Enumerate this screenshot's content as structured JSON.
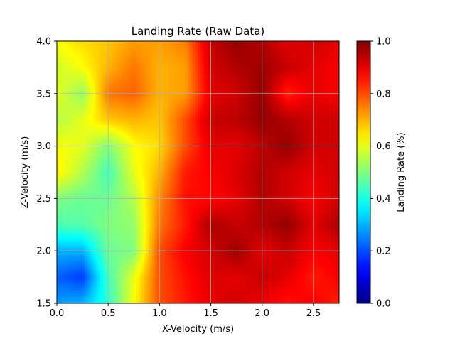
{
  "chart_data": {
    "type": "heatmap",
    "title": "Landing Rate (Raw Data)",
    "xlabel": "X-Velocity (m/s)",
    "ylabel": "Z-Velocity (m/s)",
    "colorbar_label": "Landing Rate (%)",
    "colormap": "jet",
    "xlim": [
      0,
      2.75
    ],
    "ylim": [
      1.5,
      4.0
    ],
    "zlim": [
      0,
      1.0
    ],
    "grid": true,
    "x_ticks": [
      0.0,
      0.5,
      1.0,
      1.5,
      2.0,
      2.5
    ],
    "x_tick_labels": [
      "0.0",
      "0.5",
      "1.0",
      "1.5",
      "2.0",
      "2.5"
    ],
    "y_ticks": [
      1.5,
      2.0,
      2.5,
      3.0,
      3.5,
      4.0
    ],
    "y_tick_labels": [
      "1.5",
      "2.0",
      "2.5",
      "3.0",
      "3.5",
      "4.0"
    ],
    "colorbar_ticks": [
      0.0,
      0.2,
      0.4,
      0.6,
      0.8,
      1.0
    ],
    "colorbar_tick_labels": [
      "0.0",
      "0.2",
      "0.4",
      "0.6",
      "0.8",
      "1.0"
    ],
    "x": [
      0.0,
      0.25,
      0.5,
      0.75,
      1.0,
      1.25,
      1.5,
      1.75,
      2.0,
      2.25,
      2.5,
      2.75
    ],
    "y": [
      4.0,
      3.75,
      3.5,
      3.25,
      3.0,
      2.75,
      2.5,
      2.25,
      2.0,
      1.75,
      1.5
    ],
    "z": [
      [
        0.62,
        0.66,
        0.68,
        0.72,
        0.72,
        0.75,
        0.93,
        0.98,
        0.95,
        0.9,
        0.92,
        0.9
      ],
      [
        0.58,
        0.62,
        0.7,
        0.76,
        0.7,
        0.72,
        0.92,
        0.95,
        0.97,
        0.93,
        0.9,
        0.88
      ],
      [
        0.6,
        0.52,
        0.76,
        0.78,
        0.7,
        0.72,
        0.9,
        0.92,
        0.98,
        0.84,
        0.9,
        0.88
      ],
      [
        0.55,
        0.6,
        0.68,
        0.7,
        0.68,
        0.8,
        0.93,
        0.94,
        0.98,
        0.95,
        0.92,
        0.92
      ],
      [
        0.62,
        0.6,
        0.5,
        0.62,
        0.66,
        0.8,
        0.9,
        0.9,
        0.94,
        0.98,
        0.92,
        0.92
      ],
      [
        0.64,
        0.55,
        0.44,
        0.6,
        0.7,
        0.85,
        0.88,
        0.91,
        0.95,
        0.92,
        0.9,
        0.92
      ],
      [
        0.5,
        0.48,
        0.48,
        0.55,
        0.74,
        0.86,
        0.87,
        0.9,
        0.95,
        0.92,
        0.88,
        0.92
      ],
      [
        0.45,
        0.46,
        0.5,
        0.52,
        0.76,
        0.85,
        0.96,
        0.93,
        0.95,
        0.98,
        0.9,
        0.96
      ],
      [
        0.3,
        0.3,
        0.48,
        0.5,
        0.8,
        0.88,
        0.92,
        0.97,
        0.9,
        0.93,
        0.88,
        0.9
      ],
      [
        0.22,
        0.18,
        0.44,
        0.6,
        0.8,
        0.86,
        0.91,
        0.9,
        0.93,
        0.9,
        0.85,
        0.88
      ],
      [
        0.28,
        0.3,
        0.42,
        0.62,
        0.8,
        0.85,
        0.9,
        0.92,
        0.89,
        0.86,
        0.88,
        0.84
      ]
    ]
  }
}
